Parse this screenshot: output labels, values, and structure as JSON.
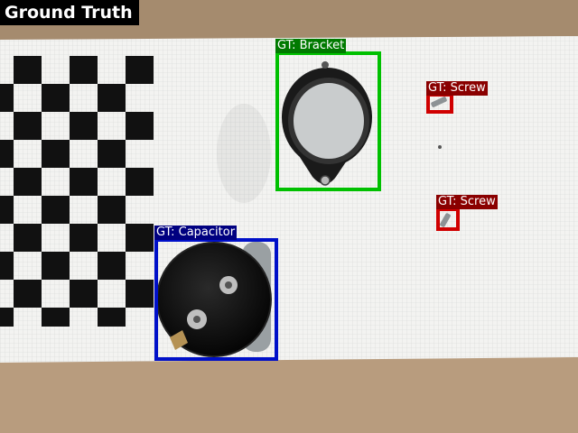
{
  "title": "Ground Truth",
  "colors": {
    "bracket": "#00c000",
    "screw": "#d00000",
    "capacitor": "#0010c8",
    "label_bracket": "#007a00",
    "label_screw": "#8a0000",
    "label_capacitor": "#000080"
  },
  "detections": [
    {
      "id": "bracket",
      "label": "GT: Bracket"
    },
    {
      "id": "screw-1",
      "label": "GT: Screw"
    },
    {
      "id": "screw-2",
      "label": "GT: Screw"
    },
    {
      "id": "capacitor",
      "label": "GT: Capacitor"
    }
  ]
}
